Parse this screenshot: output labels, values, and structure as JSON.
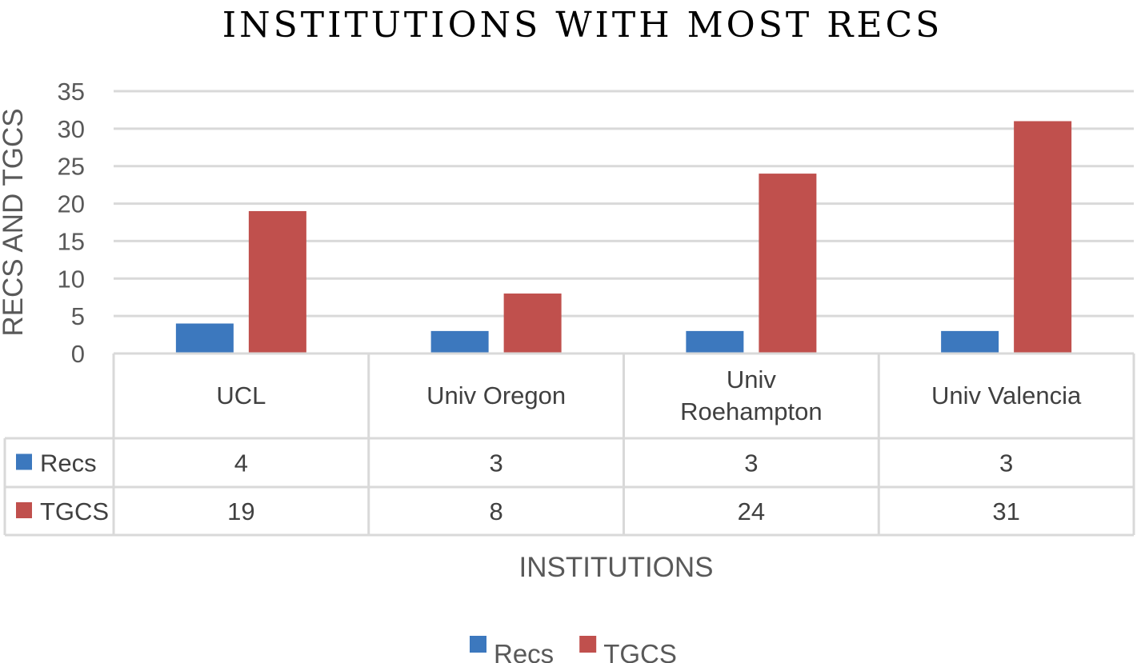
{
  "chart_data": {
    "type": "bar",
    "title": "INSTITUTIONS WITH MOST RECS",
    "xlabel": "INSTITUTIONS",
    "ylabel": "RECS AND TGCS",
    "categories": [
      "UCL",
      "Univ Oregon",
      "Univ Roehampton",
      "Univ Valencia"
    ],
    "category_lines": [
      [
        "UCL"
      ],
      [
        "Univ Oregon"
      ],
      [
        "Univ",
        "Roehampton"
      ],
      [
        "Univ Valencia"
      ]
    ],
    "series": [
      {
        "name": "Recs",
        "values": [
          4,
          3,
          3,
          3
        ],
        "color": "#3c78be"
      },
      {
        "name": "TGCS",
        "values": [
          19,
          8,
          24,
          31
        ],
        "color": "#c0504d"
      }
    ],
    "ylim": [
      0,
      35
    ],
    "yticks": [
      0,
      5,
      10,
      15,
      20,
      25,
      30,
      35
    ],
    "grid": true,
    "data_table": true,
    "legend": "bottom"
  },
  "colors": {
    "grid": "#d9d9d9",
    "text": "#595959"
  }
}
